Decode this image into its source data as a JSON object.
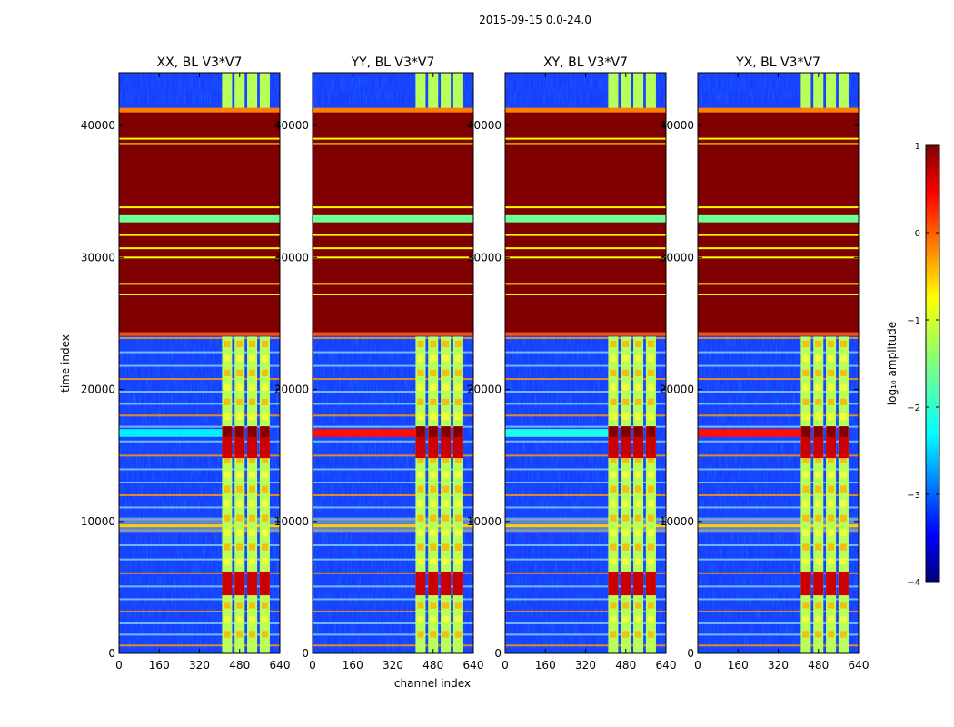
{
  "figure": {
    "suptitle": "2015-09-15 0.0-24.0"
  },
  "chart_data": {
    "type": "heatmap",
    "xlabel": "channel index",
    "ylabel": "time index",
    "x_range": [
      0,
      640
    ],
    "y_range": [
      0,
      44000
    ],
    "x_ticks": [
      "0",
      "160",
      "320",
      "480",
      "640"
    ],
    "x_tick_values": [
      0,
      160,
      320,
      480,
      640
    ],
    "y_ticks": [
      "0",
      "10000",
      "20000",
      "30000",
      "40000"
    ],
    "y_tick_values": [
      0,
      10000,
      20000,
      30000,
      40000
    ],
    "panels": [
      {
        "title": "XX, BL V3*V7",
        "rfi_band_level": -2.2
      },
      {
        "title": "YY, BL V3*V7",
        "rfi_band_level": 0.3
      },
      {
        "title": "XY, BL V3*V7",
        "rfi_band_level": -2.0
      },
      {
        "title": "YX, BL V3*V7",
        "rfi_band_level": 0.3
      }
    ],
    "saturated_block": {
      "t_start": 24200,
      "t_end": 41200,
      "level": 1.0
    },
    "interior_bright_rows": [
      27200,
      28000,
      30000,
      30700,
      31700,
      33800,
      38600,
      39000
    ],
    "green_band": {
      "t_start": 32800,
      "t_end": 33200,
      "level": -1.6
    },
    "rfi_band": {
      "t_start": 16400,
      "t_end": 17000
    },
    "grey_band": {
      "t_start": 9200,
      "t_end": 10300
    },
    "active_channels": [
      {
        "start": 410,
        "end": 450
      },
      {
        "start": 460,
        "end": 500
      },
      {
        "start": 510,
        "end": 550
      },
      {
        "start": 560,
        "end": 600
      }
    ],
    "colorbar": {
      "label": "log₁₀ amplitude",
      "range": [
        -4,
        1
      ],
      "ticks": [
        "1",
        "0",
        "−1",
        "−2",
        "−3",
        "−4"
      ],
      "tick_values": [
        1,
        0,
        -1,
        -2,
        -3,
        -4
      ],
      "colormap": "jet"
    }
  }
}
